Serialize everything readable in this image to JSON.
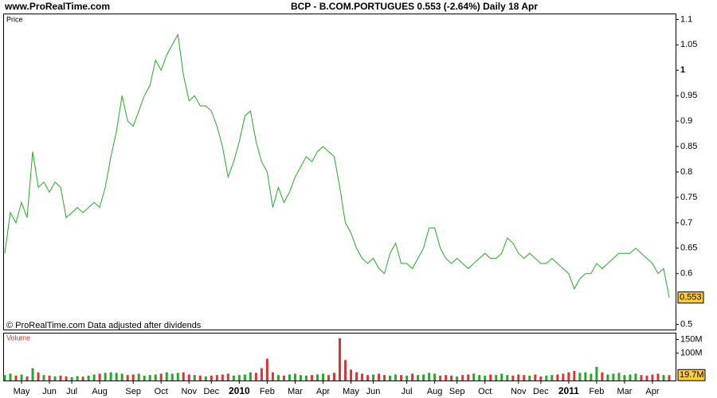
{
  "header": {
    "site": "www.ProRealTime.com",
    "title": "BCP - B.COM.PORTUGUES   0.553 (-2.64%)   Daily  18 Apr"
  },
  "chart_data": [
    {
      "type": "line",
      "axis_label": "Price",
      "note": "© ProRealTime.com  Data adjusted after dividends",
      "color": "#22aa22",
      "categories": [
        null,
        null,
        null,
        "May",
        null,
        null,
        null,
        null,
        "Jun",
        null,
        null,
        null,
        "Jul",
        null,
        null,
        null,
        null,
        "Aug",
        null,
        null,
        null,
        null,
        null,
        "Sep",
        null,
        null,
        null,
        null,
        "Oct",
        null,
        null,
        null,
        null,
        "Nov",
        null,
        null,
        null,
        "Dec",
        null,
        null,
        null,
        null,
        "2010",
        null,
        null,
        null,
        null,
        "Feb",
        null,
        null,
        null,
        null,
        "Mar",
        null,
        null,
        null,
        null,
        "Apr",
        null,
        null,
        null,
        null,
        "May",
        null,
        null,
        null,
        "Jun",
        null,
        null,
        null,
        null,
        null,
        "Jul",
        null,
        null,
        null,
        null,
        "Aug",
        null,
        null,
        null,
        "Sep",
        null,
        null,
        null,
        null,
        "Oct",
        null,
        null,
        null,
        null,
        null,
        "Nov",
        null,
        null,
        null,
        "Dec",
        null,
        null,
        null,
        null,
        "2011",
        null,
        null,
        null,
        null,
        "Feb",
        null,
        null,
        null,
        null,
        "Mar",
        null,
        null,
        null,
        null,
        "Apr",
        null,
        null,
        null
      ],
      "values": [
        0.64,
        0.72,
        0.7,
        0.74,
        0.71,
        0.84,
        0.77,
        0.78,
        0.76,
        0.78,
        0.77,
        0.71,
        0.72,
        0.73,
        0.72,
        0.73,
        0.74,
        0.73,
        0.77,
        0.83,
        0.88,
        0.95,
        0.9,
        0.89,
        0.92,
        0.95,
        0.97,
        1.02,
        1.0,
        1.03,
        1.05,
        1.07,
        0.99,
        0.94,
        0.95,
        0.93,
        0.93,
        0.92,
        0.89,
        0.85,
        0.79,
        0.82,
        0.86,
        0.91,
        0.92,
        0.86,
        0.82,
        0.8,
        0.73,
        0.77,
        0.74,
        0.76,
        0.79,
        0.81,
        0.83,
        0.82,
        0.84,
        0.85,
        0.84,
        0.83,
        0.77,
        0.7,
        0.68,
        0.65,
        0.63,
        0.62,
        0.63,
        0.61,
        0.6,
        0.64,
        0.66,
        0.62,
        0.62,
        0.61,
        0.63,
        0.65,
        0.69,
        0.69,
        0.65,
        0.63,
        0.62,
        0.63,
        0.62,
        0.61,
        0.62,
        0.63,
        0.64,
        0.63,
        0.63,
        0.64,
        0.67,
        0.66,
        0.64,
        0.63,
        0.64,
        0.63,
        0.62,
        0.62,
        0.63,
        0.62,
        0.61,
        0.6,
        0.57,
        0.59,
        0.6,
        0.6,
        0.62,
        0.61,
        0.62,
        0.63,
        0.64,
        0.64,
        0.64,
        0.65,
        0.64,
        0.63,
        0.62,
        0.6,
        0.61,
        0.553
      ],
      "last_value": 0.553,
      "ylim": [
        0.49,
        1.11
      ],
      "yticks": [
        0.5,
        0.6,
        0.65,
        0.7,
        0.75,
        0.8,
        0.85,
        0.9,
        0.95,
        1,
        1.05,
        1.1
      ]
    },
    {
      "type": "bar",
      "axis_label": "Volume",
      "up_color": "#22aa22",
      "down_color": "#dd3333",
      "values": [
        20,
        25,
        18,
        22,
        15,
        45,
        30,
        20,
        18,
        15,
        18,
        15,
        12,
        16,
        14,
        18,
        22,
        25,
        28,
        30,
        28,
        25,
        20,
        22,
        25,
        18,
        20,
        22,
        25,
        30,
        25,
        28,
        30,
        22,
        20,
        18,
        15,
        18,
        20,
        22,
        25,
        18,
        20,
        22,
        30,
        28,
        45,
        80,
        30,
        20,
        18,
        22,
        25,
        20,
        18,
        20,
        22,
        25,
        20,
        28,
        155,
        75,
        40,
        30,
        25,
        20,
        22,
        25,
        20,
        18,
        22,
        20,
        18,
        25,
        20,
        22,
        28,
        25,
        18,
        20,
        18,
        15,
        20,
        22,
        25,
        20,
        18,
        22,
        20,
        25,
        20,
        18,
        22,
        20,
        18,
        22,
        15,
        18,
        20,
        22,
        25,
        30,
        35,
        28,
        30,
        25,
        50,
        30,
        22,
        25,
        28,
        20,
        22,
        25,
        20,
        18,
        22,
        25,
        20,
        19.7
      ],
      "last_value": {
        "value": 19.7,
        "label": "19.7M"
      },
      "ylim": [
        0,
        175
      ],
      "yticks": [
        {
          "value": 100,
          "label": "100M"
        },
        {
          "value": 150,
          "label": "150M"
        }
      ]
    }
  ]
}
